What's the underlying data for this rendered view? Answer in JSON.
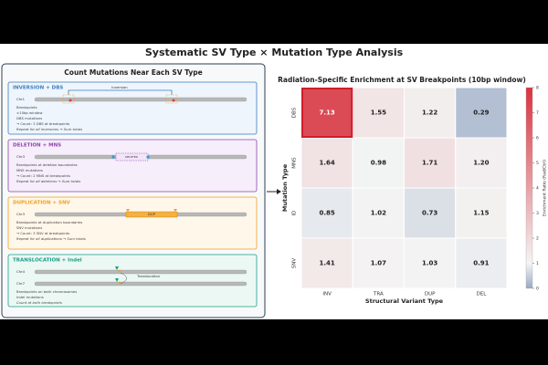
{
  "title": "Systematic SV Type × Mutation Type Analysis",
  "diagram": {
    "title": "Count Mutations Near Each SV Type",
    "panels": [
      {
        "title": "INVERSION + DBS",
        "chromosomes": [
          "Chr1"
        ],
        "labels": [
          "Inversion"
        ],
        "notes": [
          "Breakpoints",
          "±10bp window",
          "DBS mutations",
          "→ Count: 3 DBS at breakpoints",
          "Repeat for all inversions → Sum totals"
        ]
      },
      {
        "title": "DELETION + MNS",
        "chromosomes": [
          "Chr3"
        ],
        "labels": [
          "DELETED"
        ],
        "notes": [
          "Breakpoints at deletion boundaries",
          "MNS mutations",
          "→ Count: 2 MNS at breakpoints",
          "Repeat for all deletions → Sum totals"
        ]
      },
      {
        "title": "DUPLICATION + SNV",
        "chromosomes": [
          "Chr3"
        ],
        "labels": [
          "DUP"
        ],
        "notes": [
          "Breakpoints at duplication boundaries",
          "SNV mutations",
          "→ Count: 3 SNV at breakpoints",
          "Repeat for all duplications → Sum totals"
        ]
      },
      {
        "title": "TRANSLOCATION + Indel",
        "chromosomes": [
          "Chr4",
          "Chr7"
        ],
        "labels": [
          "Translocation"
        ],
        "notes": [
          "Breakpoints on both chromosomes",
          "Indel mutations",
          "Count at both breakpoints"
        ]
      }
    ]
  },
  "chart_data": {
    "type": "heatmap",
    "title": "Radiation-Specific Enrichment at SV Breakpoints (10bp window)",
    "xlabel": "Structural Variant Type",
    "ylabel": "Mutation Type",
    "x_categories": [
      "INV",
      "TRA",
      "DUP",
      "DEL"
    ],
    "y_categories": [
      "DBS",
      "MNS",
      "ID",
      "SNV"
    ],
    "values": [
      [
        7.13,
        1.55,
        1.22,
        0.29
      ],
      [
        1.64,
        0.98,
        1.71,
        1.2
      ],
      [
        0.85,
        1.02,
        0.73,
        1.15
      ],
      [
        1.41,
        1.07,
        1.03,
        0.91
      ]
    ],
    "value_labels": [
      [
        "7.13",
        "1.55",
        "1.22",
        "0.29"
      ],
      [
        "1.64",
        "0.98",
        "1.71",
        "1.20"
      ],
      [
        "0.85",
        "1.02",
        "0.73",
        "1.15"
      ],
      [
        "1.41",
        "1.07",
        "1.03",
        "0.91"
      ]
    ],
    "colorbar_label": "Enrichment Ratio (Rad/Ctrl)",
    "clim": [
      0,
      8
    ],
    "cticks": [
      0,
      1,
      2,
      3,
      4,
      5,
      6,
      7,
      8
    ],
    "norm_center": 1,
    "colormap": [
      "#98a9c4",
      "#f4f4f4",
      "#d8333f"
    ]
  }
}
